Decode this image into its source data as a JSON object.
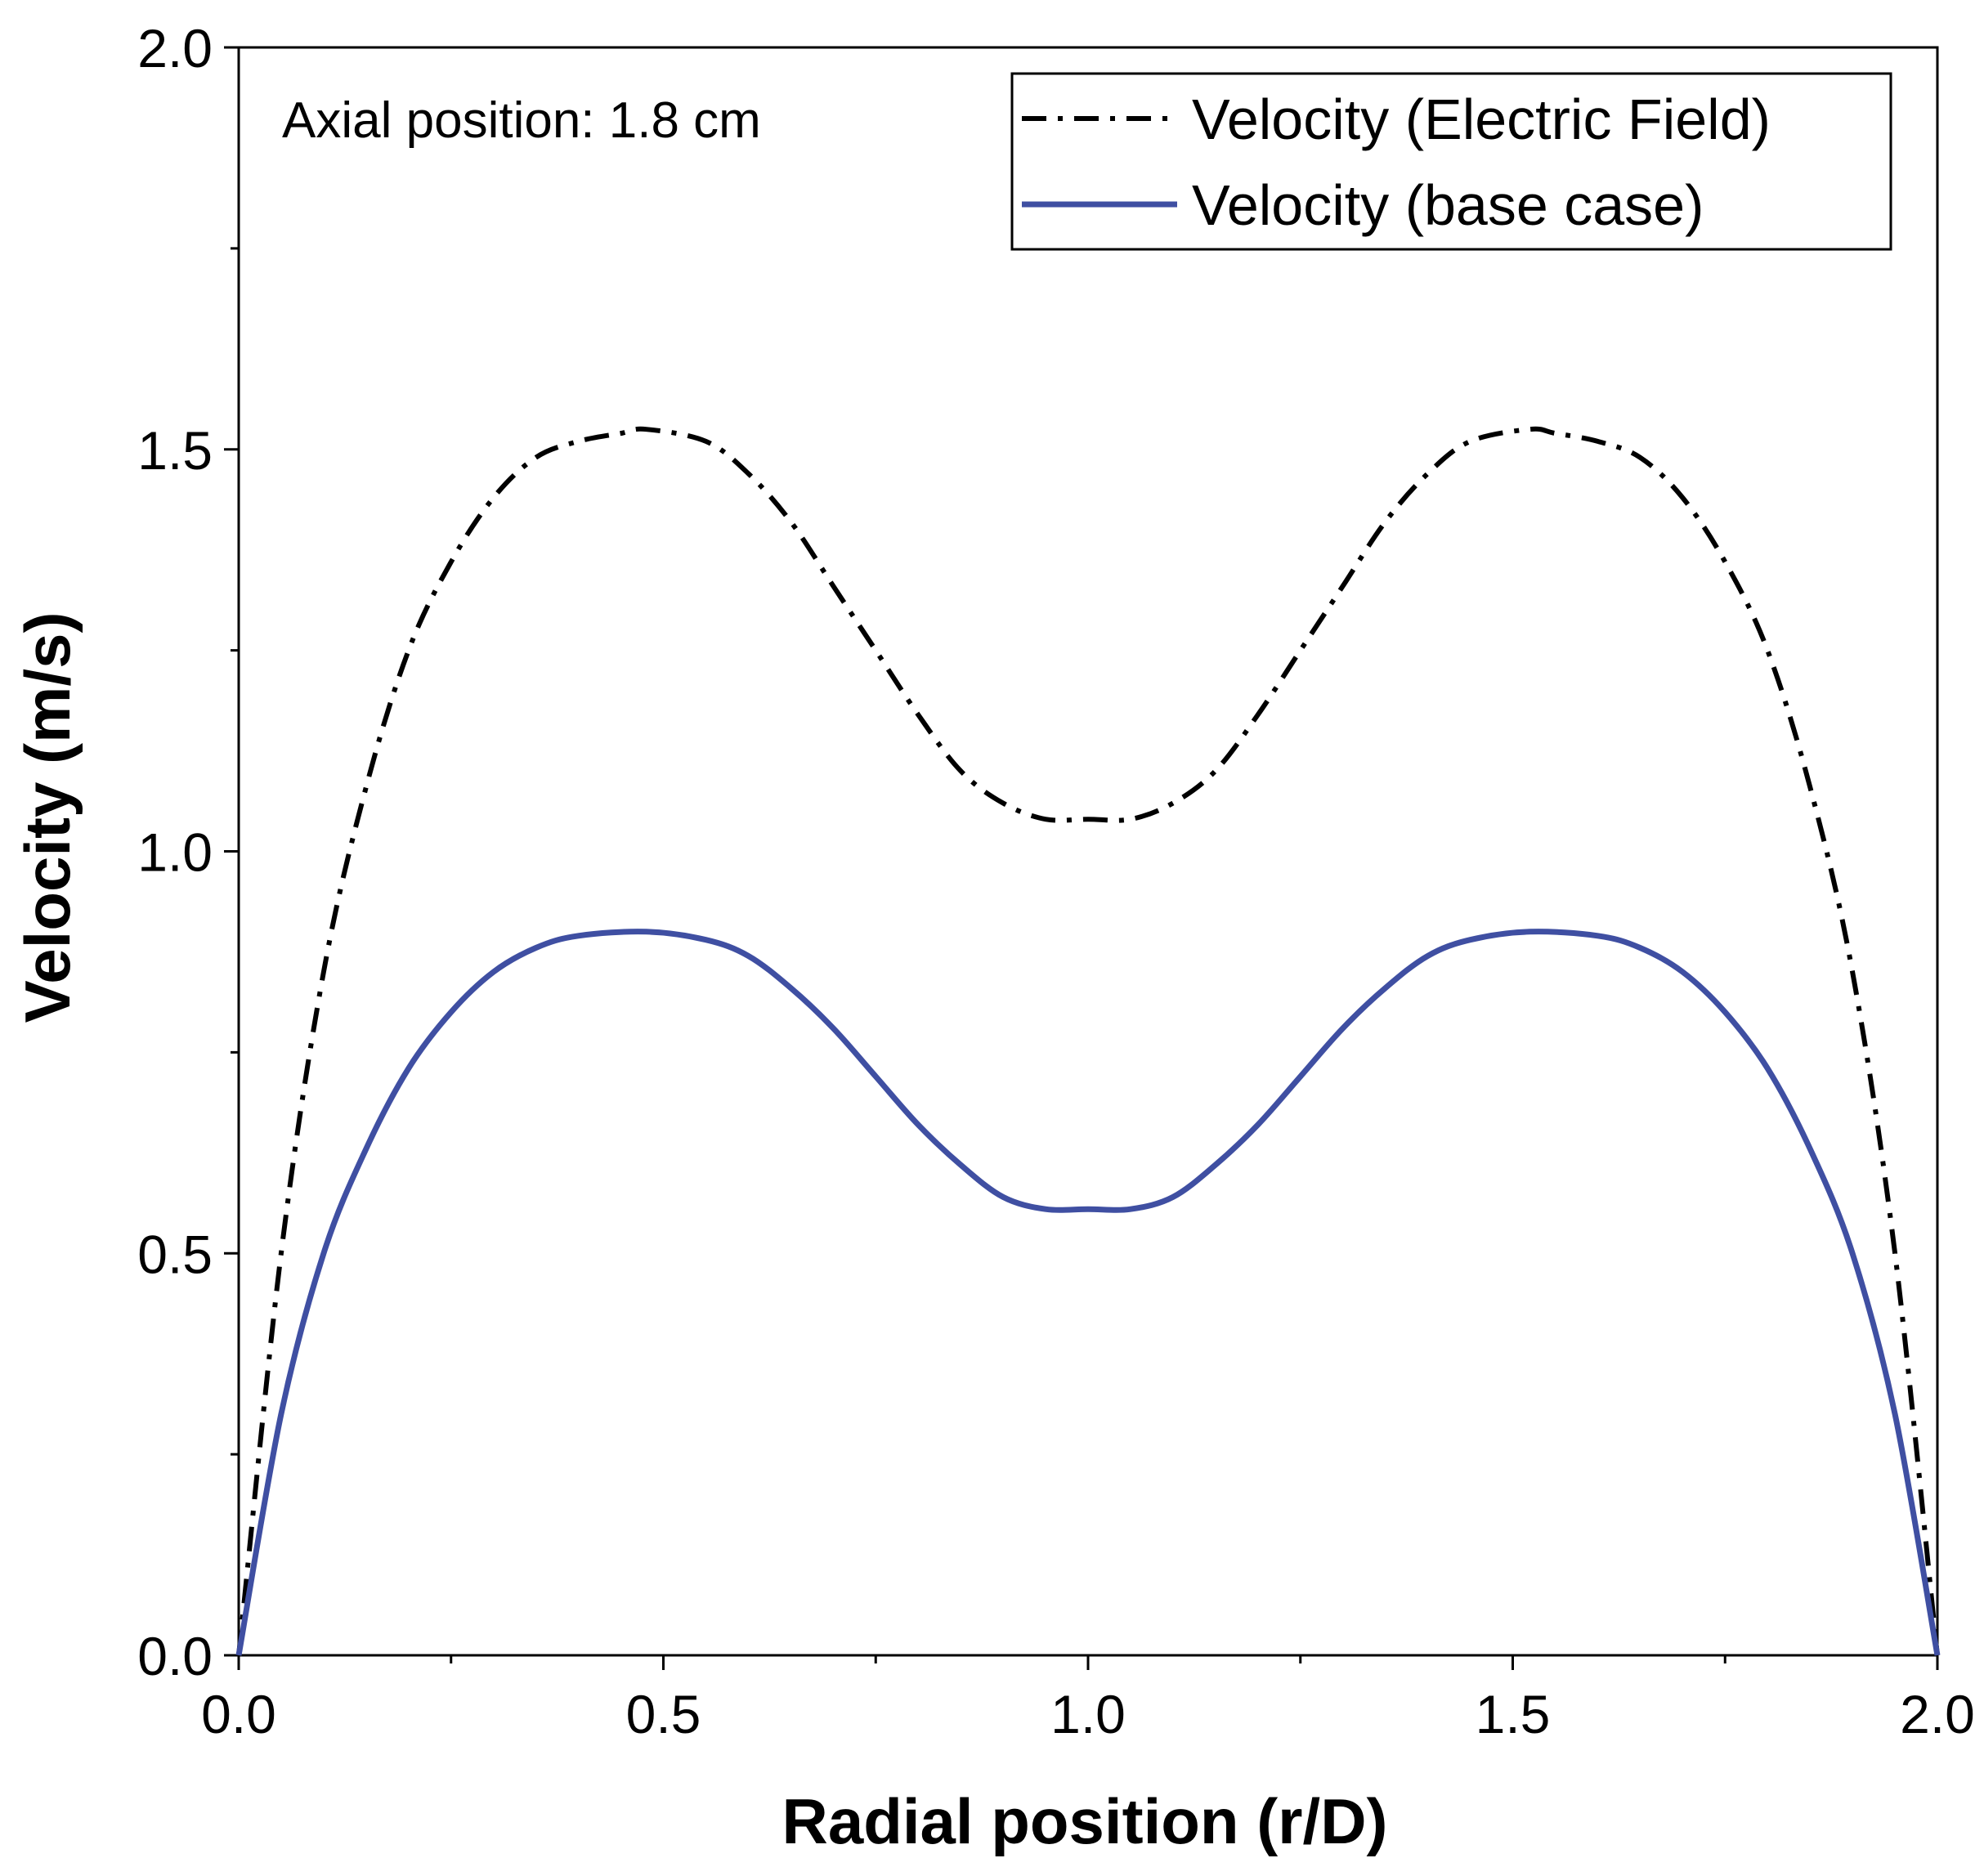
{
  "chart_data": {
    "type": "line",
    "title": "",
    "annotation": "Axial position: 1.8 cm",
    "xlabel": "Radial position (r/D)",
    "ylabel": "Velocity (m/s)",
    "xlim": [
      0.0,
      2.0
    ],
    "ylim": [
      0.0,
      2.0
    ],
    "x_ticks": [
      "0.0",
      "0.5",
      "1.0",
      "1.5",
      "2.0"
    ],
    "y_ticks": [
      "0.0",
      "0.5",
      "1.0",
      "1.5",
      "2.0"
    ],
    "x_tick_values": [
      0.0,
      0.5,
      1.0,
      1.5,
      2.0
    ],
    "y_tick_values": [
      0.0,
      0.5,
      1.0,
      1.5,
      2.0
    ],
    "x_minor_tick_values": [
      0.25,
      0.75,
      1.25,
      1.75
    ],
    "y_minor_tick_values": [
      0.25,
      0.75,
      1.25,
      1.75
    ],
    "grid": false,
    "legend_position": "top-right",
    "series": [
      {
        "name": "Velocity (Electric Field)",
        "color": "#000000",
        "style": "dash-dot",
        "x": [
          0.0,
          0.05,
          0.1,
          0.15,
          0.2,
          0.25,
          0.3,
          0.35,
          0.4,
          0.45,
          0.48,
          0.55,
          0.6,
          0.65,
          0.7,
          0.75,
          0.8,
          0.85,
          0.9,
          0.95,
          1.0,
          1.05,
          1.1,
          1.15,
          1.2,
          1.25,
          1.3,
          1.35,
          1.4,
          1.45,
          1.52,
          1.55,
          1.6,
          1.65,
          1.7,
          1.75,
          1.8,
          1.85,
          1.9,
          1.95,
          2.0
        ],
        "y": [
          0.0,
          0.5,
          0.85,
          1.08,
          1.25,
          1.36,
          1.44,
          1.49,
          1.51,
          1.52,
          1.525,
          1.51,
          1.47,
          1.41,
          1.33,
          1.25,
          1.17,
          1.1,
          1.06,
          1.04,
          1.04,
          1.04,
          1.06,
          1.1,
          1.17,
          1.25,
          1.33,
          1.41,
          1.47,
          1.51,
          1.525,
          1.52,
          1.51,
          1.49,
          1.44,
          1.36,
          1.25,
          1.08,
          0.85,
          0.5,
          0.0
        ]
      },
      {
        "name": "Velocity (base case)",
        "color": "#3f4fa2",
        "style": "solid",
        "x": [
          0.0,
          0.05,
          0.1,
          0.15,
          0.2,
          0.25,
          0.3,
          0.35,
          0.4,
          0.48,
          0.55,
          0.6,
          0.65,
          0.7,
          0.75,
          0.8,
          0.85,
          0.9,
          0.95,
          1.0,
          1.05,
          1.1,
          1.15,
          1.2,
          1.25,
          1.3,
          1.35,
          1.4,
          1.45,
          1.52,
          1.6,
          1.65,
          1.7,
          1.75,
          1.8,
          1.85,
          1.9,
          1.95,
          2.0
        ],
        "y": [
          0.0,
          0.3,
          0.5,
          0.63,
          0.73,
          0.8,
          0.85,
          0.88,
          0.895,
          0.9,
          0.89,
          0.87,
          0.83,
          0.78,
          0.72,
          0.66,
          0.61,
          0.57,
          0.555,
          0.555,
          0.555,
          0.57,
          0.61,
          0.66,
          0.72,
          0.78,
          0.83,
          0.87,
          0.89,
          0.9,
          0.895,
          0.88,
          0.85,
          0.8,
          0.73,
          0.63,
          0.5,
          0.3,
          0.0
        ]
      }
    ]
  }
}
